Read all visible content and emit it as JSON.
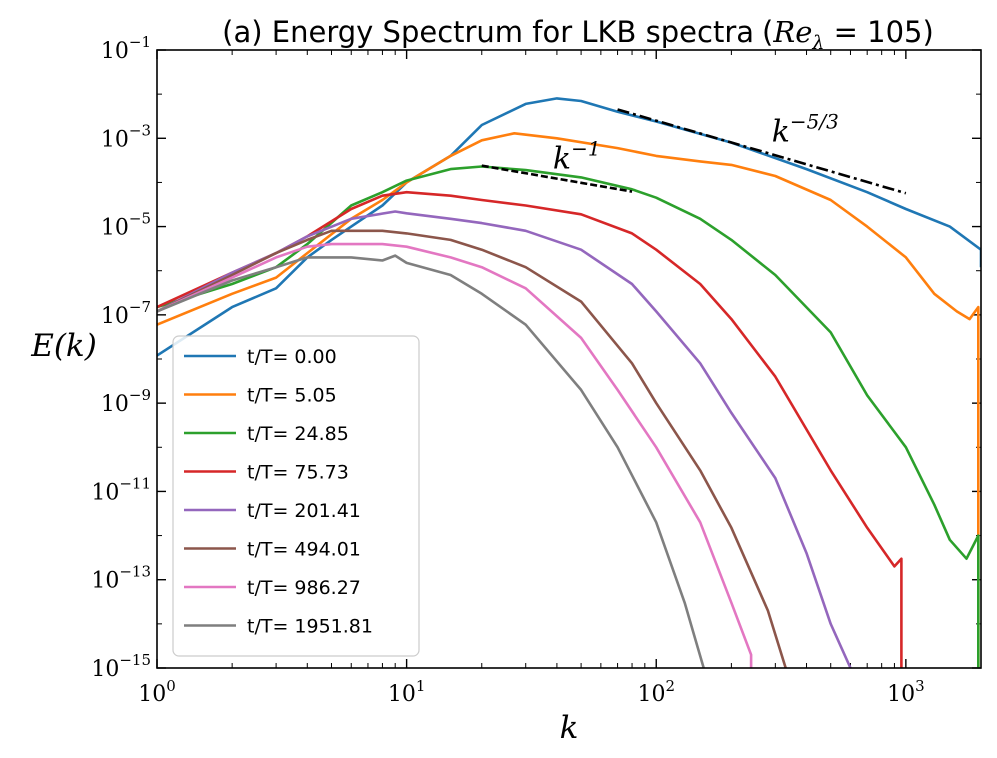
{
  "chart_data": {
    "type": "line",
    "title_text": "(a) Energy Spectrum for LKB spectra",
    "title_math": {
      "var": "Re",
      "sub": "λ",
      "rest": " = 105"
    },
    "xlabel": "k",
    "ylabel": "E(k)",
    "xscale": "log",
    "yscale": "log",
    "xlim": [
      1,
      2000
    ],
    "ylim": [
      1e-15,
      0.1
    ],
    "x_ticks": [
      {
        "value": 1,
        "base": "10",
        "exp": "0"
      },
      {
        "value": 10,
        "base": "10",
        "exp": "1"
      },
      {
        "value": 100,
        "base": "10",
        "exp": "2"
      },
      {
        "value": 1000,
        "base": "10",
        "exp": "3"
      }
    ],
    "y_ticks": [
      {
        "value": 0.1,
        "base": "10",
        "exp": "−1"
      },
      {
        "value": 0.001,
        "base": "10",
        "exp": "−3"
      },
      {
        "value": 1e-05,
        "base": "10",
        "exp": "−5"
      },
      {
        "value": 1e-07,
        "base": "10",
        "exp": "−7"
      },
      {
        "value": 1e-09,
        "base": "10",
        "exp": "−9"
      },
      {
        "value": 1e-11,
        "base": "10",
        "exp": "−11"
      },
      {
        "value": 1e-13,
        "base": "10",
        "exp": "−13"
      },
      {
        "value": 1e-15,
        "base": "10",
        "exp": "−15"
      }
    ],
    "legend_location": "lower-left",
    "series": [
      {
        "name": "t/T= 0.00",
        "color": "#1f77b4",
        "points": [
          [
            1,
            1.2e-08
          ],
          [
            2,
            1.5e-07
          ],
          [
            3,
            4e-07
          ],
          [
            4,
            2e-06
          ],
          [
            5,
            5e-06
          ],
          [
            6,
            1e-05
          ],
          [
            8,
            3e-05
          ],
          [
            10,
            0.0001
          ],
          [
            15,
            0.0004
          ],
          [
            20,
            0.002
          ],
          [
            30,
            0.006
          ],
          [
            40,
            0.008
          ],
          [
            50,
            0.007
          ],
          [
            70,
            0.004
          ],
          [
            100,
            0.0024
          ],
          [
            200,
            0.0008
          ],
          [
            400,
            0.0002
          ],
          [
            700,
            6e-05
          ],
          [
            1000,
            2.5e-05
          ],
          [
            1500,
            1e-05
          ],
          [
            2000,
            3e-06
          ],
          [
            2000,
            1.2e-06
          ]
        ]
      },
      {
        "name": "t/T= 5.05",
        "color": "#ff7f0e",
        "points": [
          [
            1,
            6e-08
          ],
          [
            2,
            3e-07
          ],
          [
            3,
            7e-07
          ],
          [
            4,
            2.5e-06
          ],
          [
            6,
            1.5e-05
          ],
          [
            8,
            4e-05
          ],
          [
            10,
            0.0001
          ],
          [
            15,
            0.0004
          ],
          [
            20,
            0.0009
          ],
          [
            27,
            0.0013
          ],
          [
            40,
            0.001
          ],
          [
            70,
            0.0006
          ],
          [
            100,
            0.0004
          ],
          [
            150,
            0.0003
          ],
          [
            200,
            0.00025
          ],
          [
            300,
            0.00014
          ],
          [
            500,
            4e-05
          ],
          [
            700,
            1e-05
          ],
          [
            1000,
            2e-06
          ],
          [
            1300,
            3e-07
          ],
          [
            1600,
            1.2e-07
          ],
          [
            1800,
            8e-08
          ],
          [
            1950,
            1.5e-07
          ],
          [
            1950,
            1e-15
          ]
        ]
      },
      {
        "name": "t/T= 24.85",
        "color": "#2ca02c",
        "points": [
          [
            1,
            1.5e-07
          ],
          [
            2,
            5e-07
          ],
          [
            3,
            1.2e-06
          ],
          [
            4,
            4e-06
          ],
          [
            6,
            3e-05
          ],
          [
            8,
            6e-05
          ],
          [
            10,
            0.00011
          ],
          [
            15,
            0.0002
          ],
          [
            20,
            0.00023
          ],
          [
            30,
            0.00019
          ],
          [
            50,
            0.00013
          ],
          [
            80,
            7e-05
          ],
          [
            100,
            4.5e-05
          ],
          [
            150,
            1.5e-05
          ],
          [
            200,
            5e-06
          ],
          [
            300,
            8e-07
          ],
          [
            500,
            4e-08
          ],
          [
            700,
            1.5e-09
          ],
          [
            1000,
            1e-10
          ],
          [
            1300,
            5e-12
          ],
          [
            1500,
            8e-13
          ],
          [
            1750,
            3e-13
          ],
          [
            1950,
            1e-12
          ],
          [
            1950,
            1e-15
          ]
        ]
      },
      {
        "name": "t/T= 75.73",
        "color": "#d62728",
        "points": [
          [
            1,
            1.5e-07
          ],
          [
            2,
            9e-07
          ],
          [
            3,
            2.5e-06
          ],
          [
            4,
            6e-06
          ],
          [
            6,
            2.5e-05
          ],
          [
            8,
            5e-05
          ],
          [
            10,
            6e-05
          ],
          [
            15,
            5e-05
          ],
          [
            20,
            4e-05
          ],
          [
            30,
            3e-05
          ],
          [
            50,
            1.9e-05
          ],
          [
            80,
            7e-06
          ],
          [
            100,
            3e-06
          ],
          [
            150,
            5e-07
          ],
          [
            200,
            8e-08
          ],
          [
            300,
            4e-09
          ],
          [
            500,
            3e-11
          ],
          [
            700,
            1.5e-12
          ],
          [
            900,
            2e-13
          ],
          [
            960,
            3e-13
          ],
          [
            960,
            1e-15
          ]
        ]
      },
      {
        "name": "t/T= 201.41",
        "color": "#9467bd",
        "points": [
          [
            1,
            1.2e-07
          ],
          [
            2,
            9e-07
          ],
          [
            3,
            2.5e-06
          ],
          [
            4,
            6e-06
          ],
          [
            6,
            1.5e-05
          ],
          [
            9,
            2.2e-05
          ],
          [
            10,
            2e-05
          ],
          [
            15,
            1.5e-05
          ],
          [
            20,
            1.2e-05
          ],
          [
            30,
            8e-06
          ],
          [
            50,
            3e-06
          ],
          [
            80,
            5e-07
          ],
          [
            100,
            1.2e-07
          ],
          [
            150,
            8e-09
          ],
          [
            200,
            6e-10
          ],
          [
            300,
            2e-11
          ],
          [
            400,
            4e-13
          ],
          [
            500,
            1e-14
          ],
          [
            600,
            1e-15
          ]
        ]
      },
      {
        "name": "t/T= 494.01",
        "color": "#8c564b",
        "points": [
          [
            1,
            1.2e-07
          ],
          [
            2,
            8e-07
          ],
          [
            3,
            2.5e-06
          ],
          [
            4,
            5e-06
          ],
          [
            5,
            8e-06
          ],
          [
            8,
            8e-06
          ],
          [
            10,
            7e-06
          ],
          [
            15,
            5e-06
          ],
          [
            20,
            3e-06
          ],
          [
            30,
            1.2e-06
          ],
          [
            50,
            2e-07
          ],
          [
            80,
            8e-09
          ],
          [
            100,
            1e-09
          ],
          [
            150,
            3e-11
          ],
          [
            200,
            1.5e-12
          ],
          [
            280,
            2e-14
          ],
          [
            330,
            1e-15
          ]
        ]
      },
      {
        "name": "t/T= 986.27",
        "color": "#e377c2",
        "points": [
          [
            1,
            1.2e-07
          ],
          [
            2,
            7e-07
          ],
          [
            3,
            2e-06
          ],
          [
            4,
            3.5e-06
          ],
          [
            5,
            4e-06
          ],
          [
            8,
            4e-06
          ],
          [
            10,
            3.5e-06
          ],
          [
            15,
            2e-06
          ],
          [
            20,
            1.2e-06
          ],
          [
            30,
            4e-07
          ],
          [
            50,
            3e-08
          ],
          [
            70,
            2e-09
          ],
          [
            100,
            1e-10
          ],
          [
            150,
            2e-12
          ],
          [
            200,
            3e-14
          ],
          [
            240,
            2e-15
          ],
          [
            240,
            1e-15
          ]
        ]
      },
      {
        "name": "t/T= 1951.81",
        "color": "#7f7f7f",
        "points": [
          [
            1,
            1.2e-07
          ],
          [
            2,
            6e-07
          ],
          [
            3,
            1.2e-06
          ],
          [
            4,
            2e-06
          ],
          [
            6,
            2e-06
          ],
          [
            8,
            1.7e-06
          ],
          [
            9,
            2.2e-06
          ],
          [
            10,
            1.5e-06
          ],
          [
            15,
            8e-07
          ],
          [
            20,
            3e-07
          ],
          [
            30,
            6e-08
          ],
          [
            50,
            2e-09
          ],
          [
            70,
            1e-10
          ],
          [
            100,
            2e-12
          ],
          [
            130,
            3e-14
          ],
          [
            155,
            1e-15
          ]
        ]
      }
    ],
    "reference_lines": [
      {
        "label_base": "k",
        "label_exp": "−1",
        "style": "dashed",
        "points": [
          [
            20,
            0.00024
          ],
          [
            80,
            6.2e-05
          ]
        ]
      },
      {
        "label_base": "k",
        "label_exp": "−5/3",
        "style": "dashdot",
        "points": [
          [
            70,
            0.0045
          ],
          [
            1000,
            5.7e-05
          ]
        ]
      }
    ]
  }
}
